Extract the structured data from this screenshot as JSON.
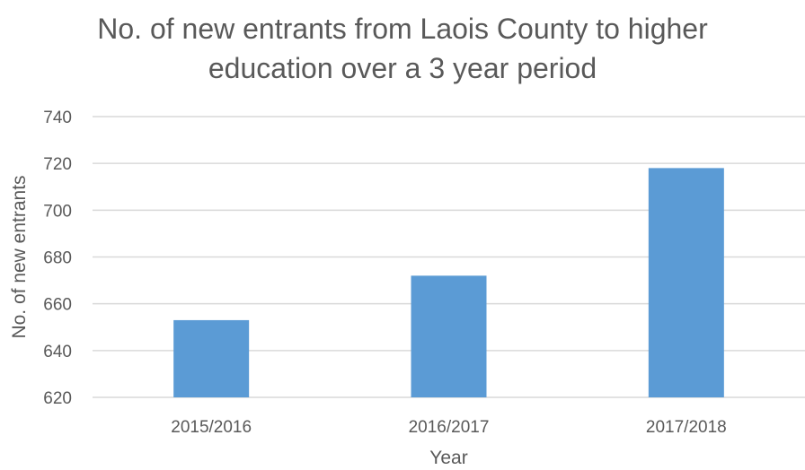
{
  "chart_data": {
    "type": "bar",
    "title_lines": [
      "No. of new entrants from Laois County to higher",
      "education over a 3 year period"
    ],
    "title": "No. of new entrants from Laois County to higher education over a 3 year period",
    "xlabel": "Year",
    "ylabel": "No. of new entrants",
    "categories": [
      "2015/2016",
      "2016/2017",
      "2017/2018"
    ],
    "values": [
      653,
      672,
      718
    ],
    "ylim": [
      620,
      740
    ],
    "yticks": [
      620,
      640,
      660,
      680,
      700,
      720,
      740
    ],
    "grid": true,
    "legend": "none",
    "bar_color": "#5b9bd5",
    "grid_color": "#d9d9d9"
  }
}
